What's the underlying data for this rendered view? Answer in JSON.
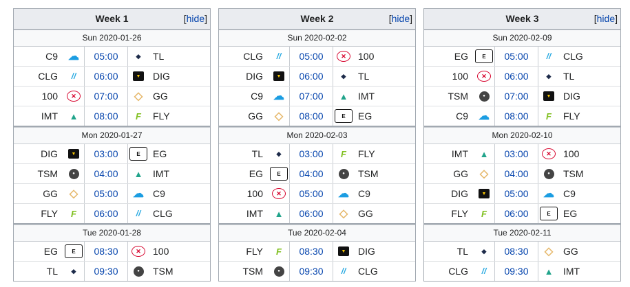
{
  "hide_label": "hide",
  "weeks": [
    {
      "title": "Week 1",
      "days": [
        {
          "date": "Sun 2020-01-26",
          "matches": [
            {
              "a": "C9",
              "a_logo": "C9",
              "time": "05:00",
              "b": "TL",
              "b_logo": "TL"
            },
            {
              "a": "CLG",
              "a_logo": "CLG",
              "time": "06:00",
              "b": "DIG",
              "b_logo": "DIG"
            },
            {
              "a": "100",
              "a_logo": "100",
              "time": "07:00",
              "b": "GG",
              "b_logo": "GG"
            },
            {
              "a": "IMT",
              "a_logo": "IMT",
              "time": "08:00",
              "b": "FLY",
              "b_logo": "FLY"
            }
          ]
        },
        {
          "date": "Mon 2020-01-27",
          "matches": [
            {
              "a": "DIG",
              "a_logo": "DIG",
              "time": "03:00",
              "b": "EG",
              "b_logo": "EG"
            },
            {
              "a": "TSM",
              "a_logo": "TSM",
              "time": "04:00",
              "b": "IMT",
              "b_logo": "IMT"
            },
            {
              "a": "GG",
              "a_logo": "GG",
              "time": "05:00",
              "b": "C9",
              "b_logo": "C9"
            },
            {
              "a": "FLY",
              "a_logo": "FLY",
              "time": "06:00",
              "b": "CLG",
              "b_logo": "CLG"
            }
          ]
        },
        {
          "date": "Tue 2020-01-28",
          "matches": [
            {
              "a": "EG",
              "a_logo": "EG",
              "time": "08:30",
              "b": "100",
              "b_logo": "100"
            },
            {
              "a": "TL",
              "a_logo": "TL",
              "time": "09:30",
              "b": "TSM",
              "b_logo": "TSM"
            }
          ]
        }
      ]
    },
    {
      "title": "Week 2",
      "days": [
        {
          "date": "Sun 2020-02-02",
          "matches": [
            {
              "a": "CLG",
              "a_logo": "CLG",
              "time": "05:00",
              "b": "100",
              "b_logo": "100"
            },
            {
              "a": "DIG",
              "a_logo": "DIG",
              "time": "06:00",
              "b": "TL",
              "b_logo": "TL"
            },
            {
              "a": "C9",
              "a_logo": "C9",
              "time": "07:00",
              "b": "IMT",
              "b_logo": "IMT"
            },
            {
              "a": "GG",
              "a_logo": "GG",
              "time": "08:00",
              "b": "EG",
              "b_logo": "EG"
            }
          ]
        },
        {
          "date": "Mon 2020-02-03",
          "matches": [
            {
              "a": "TL",
              "a_logo": "TL",
              "time": "03:00",
              "b": "FLY",
              "b_logo": "FLY"
            },
            {
              "a": "EG",
              "a_logo": "EG",
              "time": "04:00",
              "b": "TSM",
              "b_logo": "TSM"
            },
            {
              "a": "100",
              "a_logo": "100",
              "time": "05:00",
              "b": "C9",
              "b_logo": "C9"
            },
            {
              "a": "IMT",
              "a_logo": "IMT",
              "time": "06:00",
              "b": "GG",
              "b_logo": "GG"
            }
          ]
        },
        {
          "date": "Tue 2020-02-04",
          "matches": [
            {
              "a": "FLY",
              "a_logo": "FLY",
              "time": "08:30",
              "b": "DIG",
              "b_logo": "DIG"
            },
            {
              "a": "TSM",
              "a_logo": "TSM",
              "time": "09:30",
              "b": "CLG",
              "b_logo": "CLG"
            }
          ]
        }
      ]
    },
    {
      "title": "Week 3",
      "days": [
        {
          "date": "Sun 2020-02-09",
          "matches": [
            {
              "a": "EG",
              "a_logo": "EG",
              "time": "05:00",
              "b": "CLG",
              "b_logo": "CLG"
            },
            {
              "a": "100",
              "a_logo": "100",
              "time": "06:00",
              "b": "TL",
              "b_logo": "TL"
            },
            {
              "a": "TSM",
              "a_logo": "TSM",
              "time": "07:00",
              "b": "DIG",
              "b_logo": "DIG"
            },
            {
              "a": "C9",
              "a_logo": "C9",
              "time": "08:00",
              "b": "FLY",
              "b_logo": "FLY"
            }
          ]
        },
        {
          "date": "Mon 2020-02-10",
          "matches": [
            {
              "a": "IMT",
              "a_logo": "IMT",
              "time": "03:00",
              "b": "100",
              "b_logo": "100"
            },
            {
              "a": "GG",
              "a_logo": "GG",
              "time": "04:00",
              "b": "TSM",
              "b_logo": "TSM"
            },
            {
              "a": "DIG",
              "a_logo": "DIG",
              "time": "05:00",
              "b": "C9",
              "b_logo": "C9"
            },
            {
              "a": "FLY",
              "a_logo": "FLY",
              "time": "06:00",
              "b": "EG",
              "b_logo": "EG"
            }
          ]
        },
        {
          "date": "Tue 2020-02-11",
          "matches": [
            {
              "a": "TL",
              "a_logo": "TL",
              "time": "08:30",
              "b": "GG",
              "b_logo": "GG"
            },
            {
              "a": "CLG",
              "a_logo": "CLG",
              "time": "09:30",
              "b": "IMT",
              "b_logo": "IMT"
            }
          ]
        }
      ]
    }
  ]
}
